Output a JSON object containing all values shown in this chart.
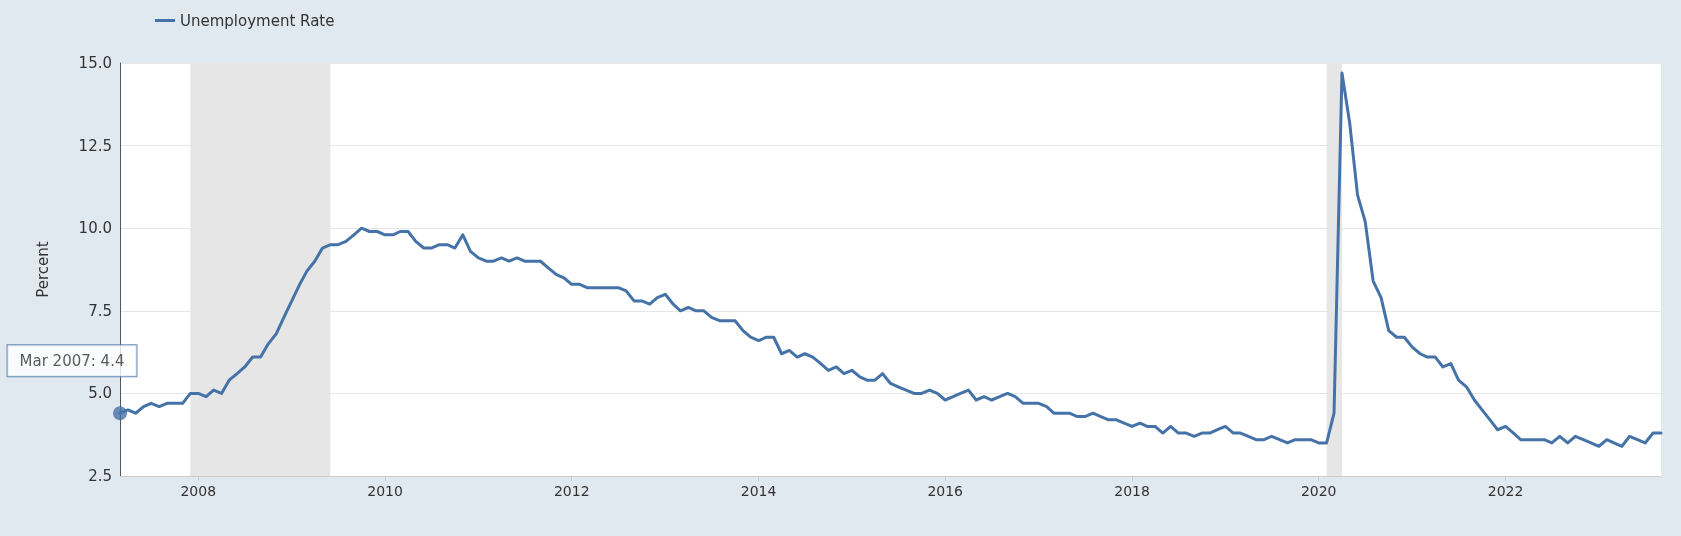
{
  "chart_data": {
    "type": "line",
    "ylabel": "Percent",
    "legend": "top left",
    "grid": "y",
    "marker": "none",
    "line_style": "solid",
    "x": [
      "2007-03",
      "2007-04",
      "2007-05",
      "2007-06",
      "2007-07",
      "2007-08",
      "2007-09",
      "2007-10",
      "2007-11",
      "2007-12",
      "2008-01",
      "2008-02",
      "2008-03",
      "2008-04",
      "2008-05",
      "2008-06",
      "2008-07",
      "2008-08",
      "2008-09",
      "2008-10",
      "2008-11",
      "2008-12",
      "2009-01",
      "2009-02",
      "2009-03",
      "2009-04",
      "2009-05",
      "2009-06",
      "2009-07",
      "2009-08",
      "2009-09",
      "2009-10",
      "2009-11",
      "2009-12",
      "2010-01",
      "2010-02",
      "2010-03",
      "2010-04",
      "2010-05",
      "2010-06",
      "2010-07",
      "2010-08",
      "2010-09",
      "2010-10",
      "2010-11",
      "2010-12",
      "2011-01",
      "2011-02",
      "2011-03",
      "2011-04",
      "2011-05",
      "2011-06",
      "2011-07",
      "2011-08",
      "2011-09",
      "2011-10",
      "2011-11",
      "2011-12",
      "2012-01",
      "2012-02",
      "2012-03",
      "2012-04",
      "2012-05",
      "2012-06",
      "2012-07",
      "2012-08",
      "2012-09",
      "2012-10",
      "2012-11",
      "2012-12",
      "2013-01",
      "2013-02",
      "2013-03",
      "2013-04",
      "2013-05",
      "2013-06",
      "2013-07",
      "2013-08",
      "2013-09",
      "2013-10",
      "2013-11",
      "2013-12",
      "2014-01",
      "2014-02",
      "2014-03",
      "2014-04",
      "2014-05",
      "2014-06",
      "2014-07",
      "2014-08",
      "2014-09",
      "2014-10",
      "2014-11",
      "2014-12",
      "2015-01",
      "2015-02",
      "2015-03",
      "2015-04",
      "2015-05",
      "2015-06",
      "2015-07",
      "2015-08",
      "2015-09",
      "2015-10",
      "2015-11",
      "2015-12",
      "2016-01",
      "2016-02",
      "2016-03",
      "2016-04",
      "2016-05",
      "2016-06",
      "2016-07",
      "2016-08",
      "2016-09",
      "2016-10",
      "2016-11",
      "2016-12",
      "2017-01",
      "2017-02",
      "2017-03",
      "2017-04",
      "2017-05",
      "2017-06",
      "2017-07",
      "2017-08",
      "2017-09",
      "2017-10",
      "2017-11",
      "2017-12",
      "2018-01",
      "2018-02",
      "2018-03",
      "2018-04",
      "2018-05",
      "2018-06",
      "2018-07",
      "2018-08",
      "2018-09",
      "2018-10",
      "2018-11",
      "2018-12",
      "2019-01",
      "2019-02",
      "2019-03",
      "2019-04",
      "2019-05",
      "2019-06",
      "2019-07",
      "2019-08",
      "2019-09",
      "2019-10",
      "2019-11",
      "2019-12",
      "2020-01",
      "2020-02",
      "2020-03",
      "2020-04",
      "2020-05",
      "2020-06",
      "2020-07",
      "2020-08",
      "2020-09",
      "2020-10",
      "2020-11",
      "2020-12",
      "2021-01",
      "2021-02",
      "2021-03",
      "2021-04",
      "2021-05",
      "2021-06",
      "2021-07",
      "2021-08",
      "2021-09",
      "2021-10",
      "2021-11",
      "2021-12",
      "2022-01",
      "2022-02",
      "2022-03",
      "2022-04",
      "2022-05",
      "2022-06",
      "2022-07",
      "2022-08",
      "2022-09",
      "2022-10",
      "2022-11",
      "2022-12",
      "2023-01",
      "2023-02",
      "2023-03",
      "2023-04",
      "2023-05",
      "2023-06",
      "2023-07",
      "2023-08",
      "2023-09"
    ],
    "series": [
      {
        "name": "Unemployment Rate",
        "color": "#4572a7",
        "values": [
          4.4,
          4.5,
          4.4,
          4.6,
          4.7,
          4.6,
          4.7,
          4.7,
          4.7,
          5.0,
          5.0,
          4.9,
          5.1,
          5.0,
          5.4,
          5.6,
          5.8,
          6.1,
          6.1,
          6.5,
          6.8,
          7.3,
          7.8,
          8.3,
          8.7,
          9.0,
          9.4,
          9.5,
          9.5,
          9.6,
          9.8,
          10.0,
          9.9,
          9.9,
          9.8,
          9.8,
          9.9,
          9.9,
          9.6,
          9.4,
          9.4,
          9.5,
          9.5,
          9.4,
          9.8,
          9.3,
          9.1,
          9.0,
          9.0,
          9.1,
          9.0,
          9.1,
          9.0,
          9.0,
          9.0,
          8.8,
          8.6,
          8.5,
          8.3,
          8.3,
          8.2,
          8.2,
          8.2,
          8.2,
          8.2,
          8.1,
          7.8,
          7.8,
          7.7,
          7.9,
          8.0,
          7.7,
          7.5,
          7.6,
          7.5,
          7.5,
          7.3,
          7.2,
          7.2,
          7.2,
          6.9,
          6.7,
          6.6,
          6.7,
          6.7,
          6.2,
          6.3,
          6.1,
          6.2,
          6.1,
          5.9,
          5.7,
          5.8,
          5.6,
          5.7,
          5.5,
          5.4,
          5.4,
          5.6,
          5.3,
          5.2,
          5.1,
          5.0,
          5.0,
          5.1,
          5.0,
          4.8,
          4.9,
          5.0,
          5.1,
          4.8,
          4.9,
          4.8,
          4.9,
          5.0,
          4.9,
          4.7,
          4.7,
          4.7,
          4.6,
          4.4,
          4.4,
          4.4,
          4.3,
          4.3,
          4.4,
          4.3,
          4.2,
          4.2,
          4.1,
          4.0,
          4.1,
          4.0,
          4.0,
          3.8,
          4.0,
          3.8,
          3.8,
          3.7,
          3.8,
          3.8,
          3.9,
          4.0,
          3.8,
          3.8,
          3.7,
          3.6,
          3.6,
          3.7,
          3.6,
          3.5,
          3.6,
          3.6,
          3.6,
          3.5,
          3.5,
          4.4,
          14.7,
          13.2,
          11.0,
          10.2,
          8.4,
          7.9,
          6.9,
          6.7,
          6.7,
          6.4,
          6.2,
          6.1,
          6.1,
          5.8,
          5.9,
          5.4,
          5.2,
          4.8,
          4.5,
          4.2,
          3.9,
          4.0,
          3.8,
          3.6,
          3.6,
          3.6,
          3.6,
          3.5,
          3.7,
          3.5,
          3.7,
          3.6,
          3.5,
          3.4,
          3.6,
          3.5,
          3.4,
          3.7,
          3.6,
          3.5,
          3.8,
          3.8
        ]
      }
    ],
    "xlim": [
      "2007-03",
      "2023-09"
    ],
    "xticks": [
      "2008",
      "2010",
      "2012",
      "2014",
      "2016",
      "2018",
      "2020",
      "2022"
    ],
    "ylim": [
      2.5,
      15
    ],
    "yticks": [
      2.5,
      {
        "value": 5,
        "label": "5.0"
      },
      7.5,
      {
        "value": 10,
        "label": "10.0"
      },
      12.5,
      {
        "value": 15,
        "label": "15.0"
      }
    ],
    "bands": [
      {
        "axis": "x",
        "from": "2007-12",
        "to": "2009-06",
        "color": "#e6e6e6"
      },
      {
        "axis": "x",
        "from": "2020-02",
        "to": "2020-04",
        "color": "#e6e6e6"
      }
    ],
    "annotations": [
      {
        "text": "Mar 2007: 4.4",
        "x": "2007-03",
        "y": 4.4
      }
    ]
  }
}
